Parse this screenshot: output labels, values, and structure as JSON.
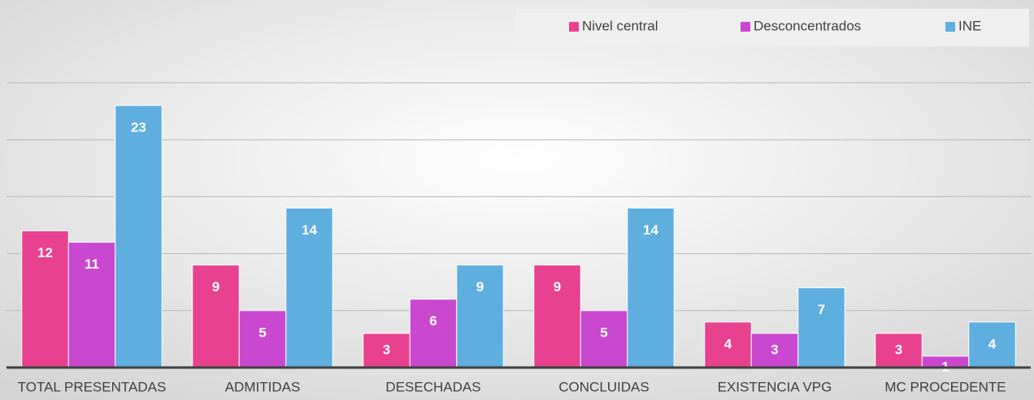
{
  "chart_data": {
    "type": "bar",
    "categories": [
      "TOTAL PRESENTADAS",
      "ADMITIDAS",
      "DESECHADAS",
      "CONCLUIDAS",
      "EXISTENCIA VPG",
      "MC PROCEDENTE"
    ],
    "series": [
      {
        "name": "Nivel central",
        "color": "#e8418f",
        "values": [
          12,
          9,
          3,
          9,
          4,
          3
        ]
      },
      {
        "name": "Desconcentrados",
        "color": "#c948cf",
        "values": [
          11,
          5,
          6,
          5,
          3,
          1
        ]
      },
      {
        "name": "INE",
        "color": "#5eaee0",
        "values": [
          23,
          14,
          9,
          14,
          7,
          4
        ]
      }
    ],
    "ylim": [
      0,
      25
    ],
    "yticks": [
      0,
      5,
      10,
      15,
      20,
      25
    ],
    "grid": true,
    "legend": "top-right"
  }
}
